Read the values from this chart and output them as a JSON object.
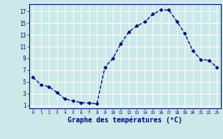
{
  "x": [
    0,
    1,
    2,
    3,
    4,
    5,
    6,
    7,
    8,
    9,
    10,
    11,
    12,
    13,
    14,
    15,
    16,
    17,
    18,
    19,
    20,
    21,
    22,
    23
  ],
  "y": [
    5.8,
    4.5,
    4.2,
    3.2,
    2.1,
    1.8,
    1.5,
    1.4,
    1.3,
    7.5,
    9.0,
    11.5,
    13.5,
    14.5,
    15.2,
    16.5,
    17.2,
    17.2,
    15.3,
    13.2,
    10.3,
    8.8,
    8.7,
    7.5
  ],
  "line_color": "#00008B",
  "marker": "D",
  "marker_size": 2.5,
  "bg_color": "#cce8e8",
  "plot_bg_color": "#cce8e8",
  "grid_color": "#ffffff",
  "xlabel": "Graphe des températures (°C)",
  "xlabel_fontsize": 7,
  "ylabel_ticks": [
    1,
    3,
    5,
    7,
    9,
    11,
    13,
    15,
    17
  ],
  "xlim": [
    -0.5,
    23.5
  ],
  "ylim": [
    0.5,
    18.2
  ],
  "axis_color": "#00008B",
  "tick_color": "#00008B",
  "label_color": "#00008B",
  "linewidth": 1.0
}
